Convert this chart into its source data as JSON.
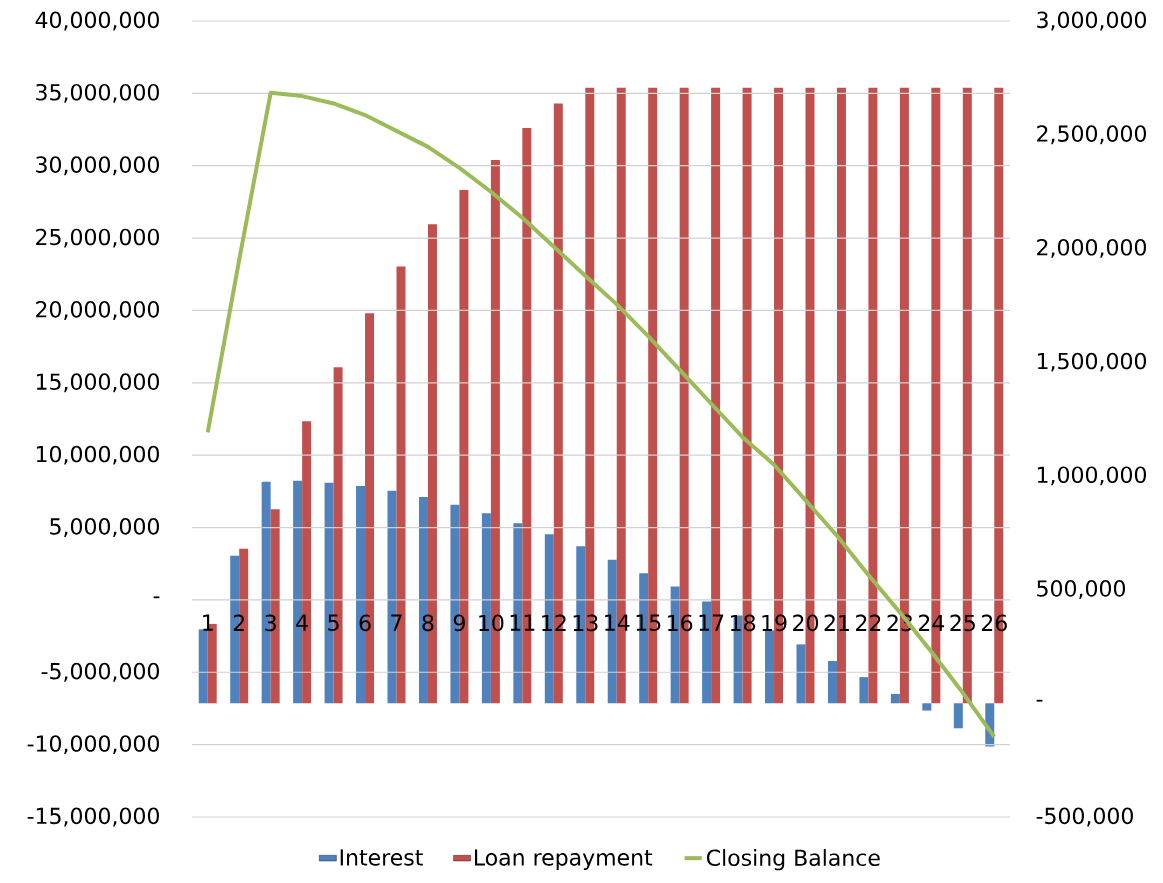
{
  "chart_data": {
    "type": "bar",
    "categories": [
      "1",
      "2",
      "3",
      "4",
      "5",
      "6",
      "7",
      "8",
      "9",
      "10",
      "11",
      "12",
      "13",
      "14",
      "15",
      "16",
      "17",
      "18",
      "19",
      "20",
      "21",
      "22",
      "23",
      "24",
      "25",
      "26"
    ],
    "series": [
      {
        "name": "Interest",
        "axis": "y2",
        "color": "#4f81bd",
        "values": [
          325000,
          649000,
          974000,
          978000,
          970000,
          955000,
          935000,
          907000,
          873000,
          836000,
          792000,
          743000,
          690000,
          631000,
          572000,
          513000,
          447000,
          386000,
          320000,
          259000,
          186000,
          115000,
          41000,
          -32000,
          -110000,
          -190000
        ]
      },
      {
        "name": "Loan repayment",
        "axis": "y2",
        "color": "#c0504d",
        "values": [
          349000,
          679000,
          853000,
          1240000,
          1478000,
          1715000,
          1920000,
          2106000,
          2257000,
          2389000,
          2530000,
          2637000,
          2707000,
          2707000,
          2707000,
          2707000,
          2707000,
          2707000,
          2707000,
          2707000,
          2707000,
          2707000,
          2707000,
          2707000,
          2707000,
          2707000
        ]
      },
      {
        "name": "Closing Balance",
        "type": "line",
        "axis": "y",
        "color": "#9bbb59",
        "values": [
          11570000,
          23500000,
          35040000,
          34810000,
          34300000,
          33500000,
          32400000,
          31300000,
          29850000,
          28200000,
          26400000,
          24400000,
          22400000,
          20420000,
          18230000,
          15900000,
          13570000,
          11240000,
          9340000,
          6890000,
          4430000,
          1720000,
          -860000,
          -3580000,
          -6420000,
          -9470000
        ]
      }
    ],
    "ylim": [
      -15000000,
      40000000
    ],
    "yticks": [
      {
        "value": -15000000,
        "label": "-15,000,000"
      },
      {
        "value": -10000000,
        "label": "-10,000,000"
      },
      {
        "value": -5000000,
        "label": "-5,000,000"
      },
      {
        "value": 0,
        "label": "-"
      },
      {
        "value": 5000000,
        "label": "5,000,000"
      },
      {
        "value": 10000000,
        "label": "10,000,000"
      },
      {
        "value": 15000000,
        "label": "15,000,000"
      },
      {
        "value": 20000000,
        "label": "20,000,000"
      },
      {
        "value": 25000000,
        "label": "25,000,000"
      },
      {
        "value": 30000000,
        "label": "30,000,000"
      },
      {
        "value": 35000000,
        "label": "35,000,000"
      },
      {
        "value": 40000000,
        "label": "40,000,000"
      }
    ],
    "y2lim": [
      -500000,
      3000000
    ],
    "y2ticks": [
      {
        "value": -500000,
        "label": "-500,000"
      },
      {
        "value": 0,
        "label": "-"
      },
      {
        "value": 500000,
        "label": "500,000"
      },
      {
        "value": 1000000,
        "label": "1,000,000"
      },
      {
        "value": 1500000,
        "label": "1,500,000"
      },
      {
        "value": 2000000,
        "label": "2,000,000"
      },
      {
        "value": 2500000,
        "label": "2,500,000"
      },
      {
        "value": 3000000,
        "label": "3,000,000"
      }
    ],
    "grid": "y",
    "legend": "bottom"
  }
}
